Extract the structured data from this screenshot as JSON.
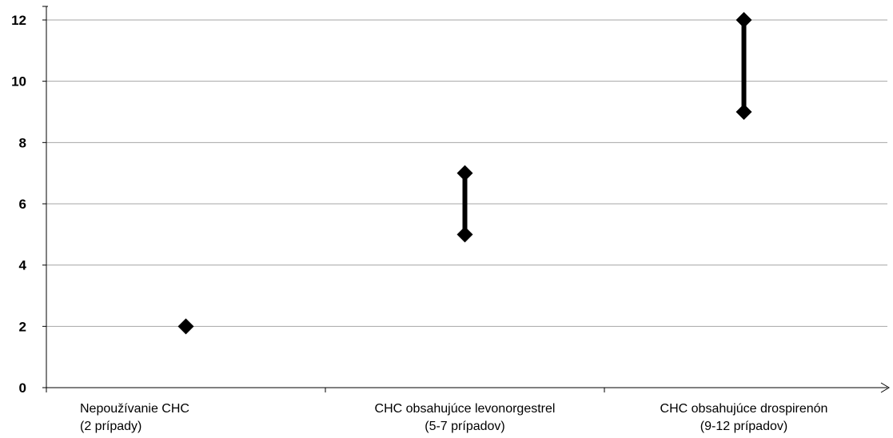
{
  "chart_data": {
    "type": "scatter",
    "categories": [
      {
        "line1": "Nepoužívanie CHC",
        "line2": "(2 prípady)"
      },
      {
        "line1": "CHC obsahujúce levonorgestrel",
        "line2": "(5-7 prípadov)"
      },
      {
        "line1": "CHC obsahujúce drospirenón",
        "line2": "(9-12 prípadov)"
      }
    ],
    "ranges": [
      {
        "low": 2,
        "high": 2
      },
      {
        "low": 5,
        "high": 7
      },
      {
        "low": 9,
        "high": 12
      }
    ],
    "ylim": [
      0,
      12
    ],
    "yticks": [
      0,
      2,
      4,
      6,
      8,
      10,
      12
    ],
    "grid": true,
    "marker": "diamond",
    "color": "#000000",
    "grid_color": "#a6a6a6"
  }
}
